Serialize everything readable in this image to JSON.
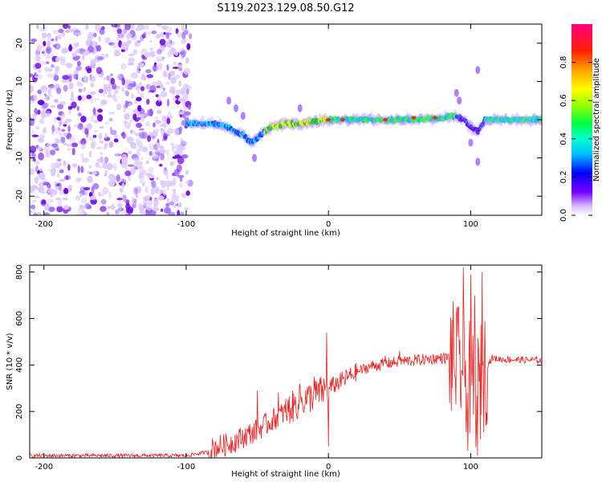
{
  "title": "S119.2023.129.08.50.G12",
  "chart_data": [
    {
      "type": "heatmap",
      "xlabel": "Height of straight line (km)",
      "ylabel": "Frequency (Hz)",
      "xlim": [
        -210,
        150
      ],
      "ylim": [
        -25,
        25
      ],
      "xticks": [
        -200,
        -100,
        0,
        100
      ],
      "yticks": [
        -20,
        -10,
        0,
        10,
        20
      ],
      "colorbar": {
        "label": "Normalized spectral amplitude",
        "range": [
          0,
          1
        ],
        "ticks": [
          0.0,
          0.2,
          0.4,
          0.6,
          0.8
        ]
      },
      "ridge": {
        "x": [
          -100,
          -90,
          -80,
          -70,
          -60,
          -55,
          -50,
          -45,
          -40,
          -30,
          -20,
          -10,
          0,
          10,
          20,
          40,
          60,
          80,
          90,
          95,
          100,
          105,
          110,
          120,
          140,
          150
        ],
        "y": [
          -1,
          -1,
          -1,
          -2,
          -4,
          -6,
          -5,
          -3,
          -2,
          -1,
          -1,
          -0.5,
          0,
          0,
          0,
          0,
          0,
          0.5,
          1,
          0,
          -2,
          -3,
          0,
          0,
          0,
          0
        ]
      }
    },
    {
      "type": "line",
      "xlabel": "Height of straight line (km)",
      "ylabel": "SNR (10 * v/v)",
      "xlim": [
        -210,
        150
      ],
      "ylim": [
        0,
        830
      ],
      "xticks": [
        -200,
        -100,
        0,
        100
      ],
      "yticks": [
        0,
        200,
        400,
        600,
        800
      ],
      "color": "#ee2222",
      "envelope": {
        "x": [
          -210,
          -100,
          -85,
          -80,
          -70,
          -60,
          -50,
          -40,
          -30,
          -20,
          -10,
          0,
          10,
          20,
          30,
          40,
          50,
          60,
          70,
          80,
          85,
          90,
          95,
          100,
          105,
          110,
          115,
          120,
          150
        ],
        "y": [
          10,
          10,
          25,
          45,
          60,
          90,
          120,
          160,
          200,
          240,
          270,
          300,
          335,
          370,
          395,
          405,
          415,
          420,
          425,
          430,
          430,
          410,
          380,
          330,
          280,
          380,
          430,
          425,
          420
        ]
      },
      "spikes": {
        "x": [
          -50,
          -35,
          -20,
          -10,
          -1,
          0,
          1,
          40,
          50,
          90,
          95,
          98,
          100,
          103,
          105,
          108
        ],
        "y": [
          290,
          280,
          320,
          350,
          540,
          50,
          300,
          440,
          460,
          620,
          820,
          30,
          790,
          700,
          10,
          800
        ]
      }
    }
  ]
}
